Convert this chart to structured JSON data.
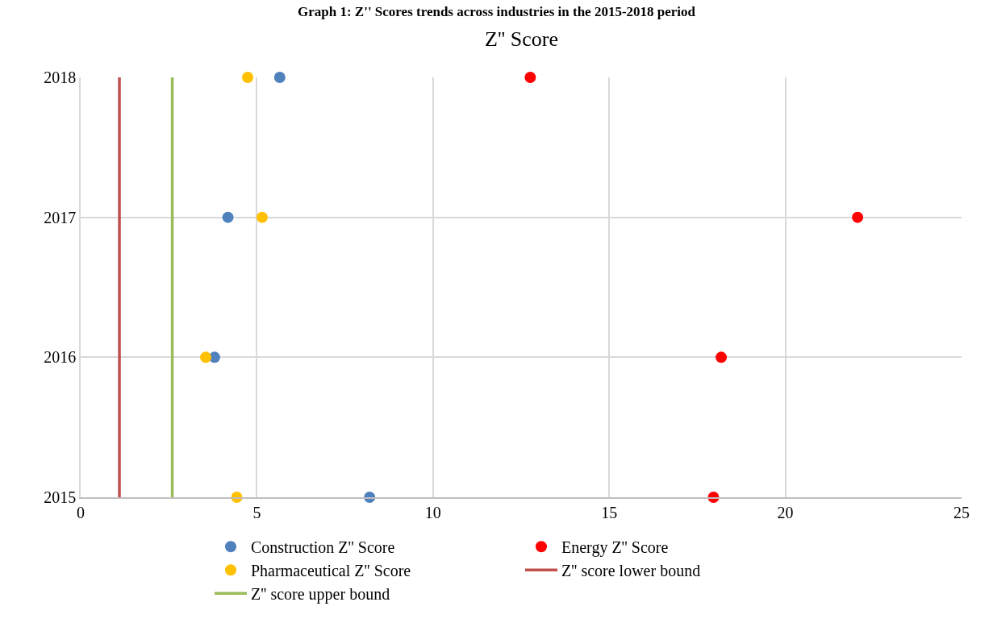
{
  "chart_data": {
    "type": "scatter",
    "title": "Graph 1: Z'' Scores trends across industries in the 2015-2018 period",
    "subtitle": "Z'' Score",
    "xlim": [
      0,
      25
    ],
    "xticks": [
      0,
      5,
      10,
      15,
      20,
      25
    ],
    "ylim": [
      2015,
      2018
    ],
    "yticks": [
      2015,
      2016,
      2017,
      2018
    ],
    "grid": true,
    "legend": "bottom",
    "marker": "circle",
    "series": [
      {
        "name": "Construction Z'' Score",
        "color": "#4f81bd",
        "x": [
          5.65,
          4.18,
          3.8,
          8.2
        ],
        "values": [
          2018,
          2017,
          2016,
          2015
        ]
      },
      {
        "name": "Energy Z'' Score",
        "color": "#ff0000",
        "x": [
          12.76,
          22.05,
          18.18,
          17.96
        ],
        "values": [
          2018,
          2017,
          2016,
          2015
        ]
      },
      {
        "name": "Pharmaceutical Z'' Score",
        "color": "#ffc000",
        "x": [
          4.74,
          5.15,
          3.55,
          4.43
        ],
        "values": [
          2018,
          2017,
          2016,
          2015
        ]
      },
      {
        "name": "Z'' score lower bound",
        "type": "line",
        "marker": "none",
        "color": "#c0504d",
        "x": [
          1.1,
          1.1
        ],
        "values": [
          2015,
          2018
        ]
      },
      {
        "name": "Z'' score upper bound",
        "type": "line",
        "marker": "none",
        "color": "#9bbb59",
        "x": [
          2.6,
          2.6
        ],
        "values": [
          2015,
          2018
        ]
      }
    ]
  }
}
